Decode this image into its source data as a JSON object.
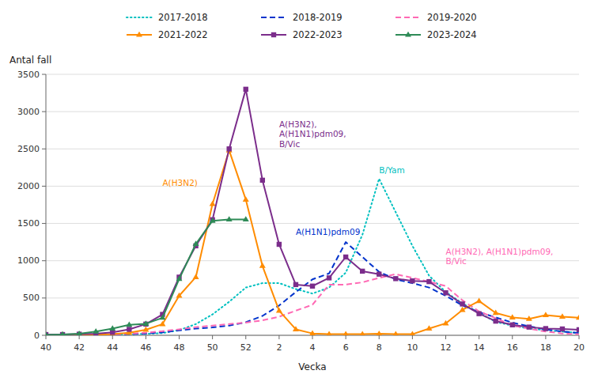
{
  "chart_data": {
    "type": "line",
    "x_label": "Vecka",
    "y_label": "Antal fall",
    "categories": [
      "40",
      null,
      "42",
      null,
      "44",
      null,
      "46",
      null,
      "48",
      null,
      "50",
      null,
      "52",
      null,
      "2",
      null,
      "4",
      null,
      "6",
      null,
      "8",
      null,
      "10",
      null,
      "12",
      null,
      "14",
      null,
      "16",
      null,
      "18",
      null,
      "20"
    ],
    "ylim": [
      0,
      3500
    ],
    "yticks": [
      0,
      500,
      1000,
      1500,
      2000,
      2500,
      3000,
      3500
    ],
    "grid": true,
    "legend": "top",
    "series": [
      {
        "name": "2017-2018",
        "color": "#00C0C0",
        "line_style": "dotted",
        "values": [
          5,
          5,
          5,
          10,
          10,
          15,
          20,
          30,
          70,
          150,
          280,
          450,
          640,
          700,
          700,
          620,
          560,
          640,
          840,
          1350,
          2100,
          1650,
          1200,
          800,
          580,
          430,
          300,
          180,
          130,
          90,
          70,
          50,
          30
        ]
      },
      {
        "name": "2018-2019",
        "color": "#0033CC",
        "line_style": "dashed",
        "values": [
          5,
          5,
          5,
          8,
          12,
          15,
          25,
          40,
          65,
          90,
          105,
          130,
          175,
          260,
          400,
          580,
          750,
          830,
          1250,
          1050,
          850,
          750,
          700,
          640,
          530,
          400,
          310,
          240,
          170,
          120,
          80,
          50,
          30
        ]
      },
      {
        "name": "2019-2020",
        "color": "#FF69B4",
        "line_style": "dashed",
        "values": [
          5,
          5,
          5,
          8,
          12,
          20,
          35,
          55,
          80,
          110,
          130,
          150,
          170,
          200,
          250,
          330,
          410,
          680,
          680,
          710,
          770,
          820,
          770,
          720,
          660,
          470,
          320,
          230,
          130,
          90,
          50,
          25,
          15
        ]
      },
      {
        "name": "2021-2022",
        "color": "#FF8C00",
        "line_style": "solid",
        "marker": "triangle",
        "values": [
          5,
          5,
          5,
          8,
          15,
          35,
          75,
          150,
          530,
          780,
          1760,
          2480,
          1820,
          930,
          330,
          80,
          25,
          15,
          15,
          15,
          20,
          15,
          15,
          90,
          160,
          340,
          460,
          300,
          240,
          220,
          270,
          250,
          235
        ]
      },
      {
        "name": "2022-2023",
        "color": "#7B2D8B",
        "line_style": "solid",
        "marker": "square",
        "values": [
          10,
          10,
          15,
          20,
          40,
          80,
          150,
          280,
          780,
          1200,
          1550,
          2500,
          3300,
          2080,
          1220,
          680,
          660,
          770,
          1050,
          860,
          820,
          760,
          730,
          720,
          570,
          420,
          290,
          190,
          140,
          110,
          90,
          85,
          75
        ]
      },
      {
        "name": "2023-2024",
        "color": "#2E8B57",
        "line_style": "solid",
        "marker": "triangle",
        "values": [
          5,
          10,
          20,
          50,
          90,
          140,
          155,
          235,
          755,
          1225,
          1535,
          1555,
          1555,
          null,
          null,
          null,
          null,
          null,
          null,
          null,
          null,
          null,
          null,
          null,
          null,
          null,
          null,
          null,
          null,
          null,
          null,
          null,
          null
        ]
      }
    ],
    "annotations": [
      {
        "text": "A(H3N2)",
        "x": 7,
        "y": 2050,
        "color": "#FF8C00"
      },
      {
        "text": "A(H3N2),\nA(H1N1)pdm09,\nB/Vic",
        "x": 14,
        "y": 2700,
        "color": "#7B2D8B"
      },
      {
        "text": "B/Yam",
        "x": 20,
        "y": 2220,
        "color": "#00C0C0"
      },
      {
        "text": "A(H1N1)pdm09",
        "x": 15,
        "y": 1390,
        "color": "#0033CC"
      },
      {
        "text": "A(H3N2), A(H1N1)pdm09,\nB/Vic",
        "x": 24,
        "y": 1060,
        "color": "#FF69B4"
      }
    ]
  }
}
